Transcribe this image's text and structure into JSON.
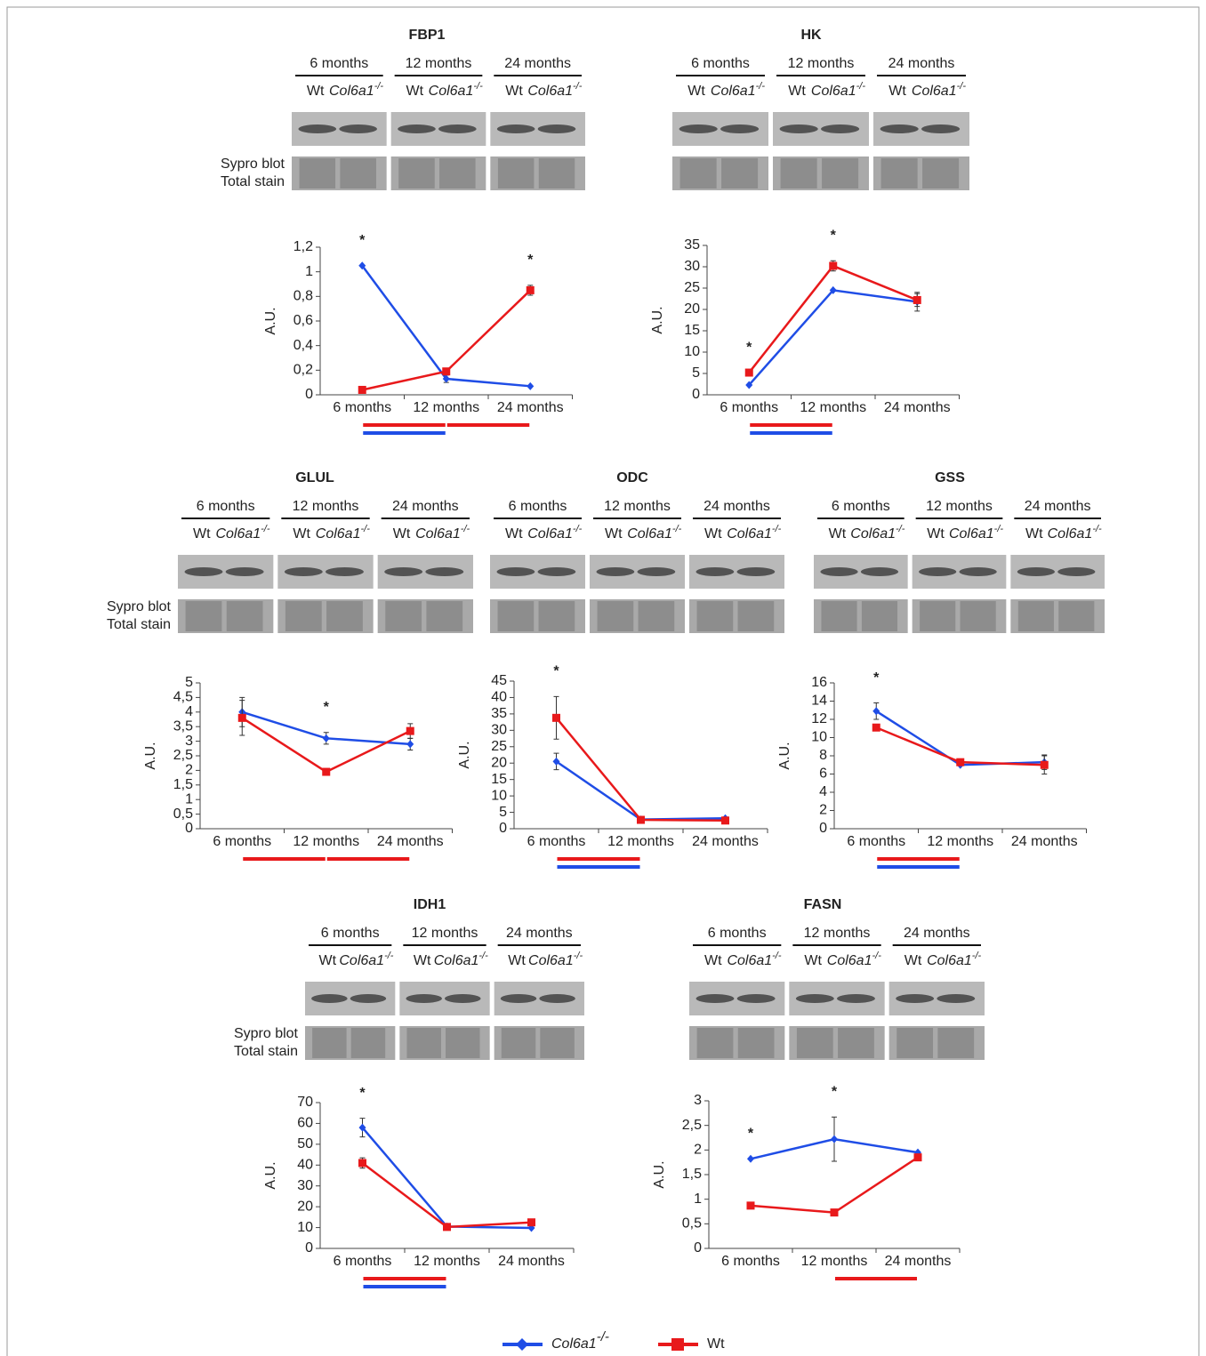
{
  "blot_labels": {
    "sypro": "Sypro blot",
    "total": "Total stain",
    "wt": "Wt",
    "ko": "Col6a1",
    "ko_sup": "-/-"
  },
  "chart_data": [
    {
      "type": "line",
      "title": "FBP1",
      "ylabel": "A.U.",
      "categories": [
        "6 months",
        "12 months",
        "24 months"
      ],
      "show_stain_label": true,
      "ylim": [
        0,
        1.2
      ],
      "yticks": [
        0,
        {
          "value": 0.2,
          "label": "0,2"
        },
        {
          "value": 0.4,
          "label": "0,4"
        },
        {
          "value": 0.6,
          "label": "0,6"
        },
        {
          "value": 0.8,
          "label": "0,8"
        },
        1,
        {
          "value": 1.2,
          "label": "1,2"
        }
      ],
      "series": [
        {
          "name": "Col6a1",
          "superscript": "-/-",
          "color": "#1f4de6",
          "values": [
            1.05,
            0.13,
            0.07
          ],
          "errors": [
            0,
            0.03,
            0
          ]
        },
        {
          "name": "Wt",
          "color": "#e8191b",
          "values": [
            0.04,
            0.19,
            0.85
          ],
          "errors": [
            0,
            0,
            0.04
          ]
        }
      ],
      "annotations": [
        {
          "text": "*",
          "category": 0
        },
        {
          "text": "*",
          "category": 2
        }
      ],
      "significance": [
        {
          "from": 0,
          "to": 1,
          "color": "#e8191b"
        },
        {
          "from": 0,
          "to": 1,
          "color": "#1f4de6"
        },
        {
          "from": 1,
          "to": 2,
          "color": "#e8191b"
        }
      ]
    },
    {
      "type": "line",
      "title": "HK",
      "ylabel": "A.U.",
      "categories": [
        "6 months",
        "12 months",
        "24 months"
      ],
      "show_stain_label": false,
      "ylim": [
        0,
        35
      ],
      "yticks": [
        0,
        5,
        10,
        15,
        20,
        25,
        30,
        35
      ],
      "series": [
        {
          "name": "Col6a1",
          "superscript": "-/-",
          "color": "#1f4de6",
          "values": [
            2.3,
            24.5,
            21.8
          ],
          "errors": [
            0,
            0,
            2.2
          ]
        },
        {
          "name": "Wt",
          "color": "#e8191b",
          "values": [
            5.2,
            30.2,
            22.2
          ],
          "errors": [
            0,
            1.2,
            1.5
          ]
        }
      ],
      "annotations": [
        {
          "text": "*",
          "category": 0
        },
        {
          "text": "*",
          "category": 1
        }
      ],
      "significance": [
        {
          "from": 0,
          "to": 1,
          "color": "#e8191b"
        },
        {
          "from": 0,
          "to": 1,
          "color": "#1f4de6"
        }
      ]
    },
    {
      "type": "line",
      "title": "GLUL",
      "ylabel": "A.U.",
      "categories": [
        "6 months",
        "12 months",
        "24 months"
      ],
      "show_stain_label": true,
      "ylim": [
        0,
        5
      ],
      "yticks": [
        0,
        {
          "value": 0.5,
          "label": "0,5"
        },
        1,
        {
          "value": 1.5,
          "label": "1,5"
        },
        2,
        {
          "value": 2.5,
          "label": "2,5"
        },
        3,
        {
          "value": 3.5,
          "label": "3,5"
        },
        4,
        {
          "value": 4.5,
          "label": "4,5"
        },
        5
      ],
      "series": [
        {
          "name": "Col6a1",
          "superscript": "-/-",
          "color": "#1f4de6",
          "values": [
            4.0,
            3.1,
            2.9
          ],
          "errors": [
            0.5,
            0.2,
            0.2
          ]
        },
        {
          "name": "Wt",
          "color": "#e8191b",
          "values": [
            3.8,
            1.95,
            3.35
          ],
          "errors": [
            0.6,
            0,
            0.25
          ]
        }
      ],
      "annotations": [
        {
          "text": "*",
          "category": 1
        }
      ],
      "significance": [
        {
          "from": 0,
          "to": 1,
          "color": "#e8191b"
        },
        {
          "from": 1,
          "to": 2,
          "color": "#e8191b"
        }
      ]
    },
    {
      "type": "line",
      "title": "ODC",
      "ylabel": "A.U.",
      "categories": [
        "6 months",
        "12 months",
        "24 months"
      ],
      "show_stain_label": false,
      "ylim": [
        0,
        45
      ],
      "yticks": [
        0,
        5,
        10,
        15,
        20,
        25,
        30,
        35,
        40,
        45
      ],
      "series": [
        {
          "name": "Col6a1",
          "superscript": "-/-",
          "color": "#1f4de6",
          "values": [
            20.5,
            2.8,
            3.2
          ],
          "errors": [
            2.5,
            0,
            0
          ]
        },
        {
          "name": "Wt",
          "color": "#e8191b",
          "values": [
            33.8,
            2.7,
            2.5
          ],
          "errors": [
            6.5,
            0,
            0
          ]
        }
      ],
      "annotations": [
        {
          "text": "*",
          "category": 0
        }
      ],
      "significance": [
        {
          "from": 0,
          "to": 1,
          "color": "#e8191b"
        },
        {
          "from": 0,
          "to": 1,
          "color": "#1f4de6"
        }
      ]
    },
    {
      "type": "line",
      "title": "GSS",
      "ylabel": "A.U.",
      "categories": [
        "6 months",
        "12 months",
        "24 months"
      ],
      "show_stain_label": false,
      "ylim": [
        0,
        16
      ],
      "yticks": [
        0,
        2,
        4,
        6,
        8,
        10,
        12,
        14,
        16
      ],
      "series": [
        {
          "name": "Col6a1",
          "superscript": "-/-",
          "color": "#1f4de6",
          "values": [
            12.9,
            7.0,
            7.3
          ],
          "errors": [
            0.9,
            0,
            0.8
          ]
        },
        {
          "name": "Wt",
          "color": "#e8191b",
          "values": [
            11.1,
            7.3,
            7.0
          ],
          "errors": [
            0,
            0,
            1.0
          ]
        }
      ],
      "annotations": [
        {
          "text": "*",
          "category": 0
        }
      ],
      "significance": [
        {
          "from": 0,
          "to": 1,
          "color": "#e8191b"
        },
        {
          "from": 0,
          "to": 1,
          "color": "#1f4de6"
        }
      ]
    },
    {
      "type": "line",
      "title": "IDH1",
      "ylabel": "A.U.",
      "categories": [
        "6 months",
        "12 months",
        "24 months"
      ],
      "show_stain_label": true,
      "ylim": [
        0,
        70
      ],
      "yticks": [
        0,
        10,
        20,
        30,
        40,
        50,
        60,
        70
      ],
      "series": [
        {
          "name": "Col6a1",
          "superscript": "-/-",
          "color": "#1f4de6",
          "values": [
            58,
            10.5,
            9.8
          ],
          "errors": [
            4.5,
            0,
            0
          ]
        },
        {
          "name": "Wt",
          "color": "#e8191b",
          "values": [
            41,
            10.3,
            12.5
          ],
          "errors": [
            2.5,
            0,
            0
          ]
        }
      ],
      "annotations": [
        {
          "text": "*",
          "category": 0
        }
      ],
      "significance": [
        {
          "from": 0,
          "to": 1,
          "color": "#e8191b"
        },
        {
          "from": 0,
          "to": 1,
          "color": "#1f4de6"
        }
      ]
    },
    {
      "type": "line",
      "title": "FASN",
      "ylabel": "A.U.",
      "categories": [
        "6 months",
        "12 months",
        "24 months"
      ],
      "show_stain_label": false,
      "ylim": [
        0,
        3
      ],
      "yticks": [
        0,
        {
          "value": 0.5,
          "label": "0,5"
        },
        1,
        {
          "value": 1.5,
          "label": "1,5"
        },
        2,
        {
          "value": 2.5,
          "label": "2,5"
        },
        3
      ],
      "series": [
        {
          "name": "Col6a1",
          "superscript": "-/-",
          "color": "#1f4de6",
          "values": [
            1.82,
            2.22,
            1.95
          ],
          "errors": [
            0,
            0.45,
            0
          ]
        },
        {
          "name": "Wt",
          "color": "#e8191b",
          "values": [
            0.87,
            0.73,
            1.85
          ],
          "errors": [
            0,
            0,
            0
          ]
        }
      ],
      "annotations": [
        {
          "text": "*",
          "category": 0
        },
        {
          "text": "*",
          "category": 1
        }
      ],
      "significance": [
        {
          "from": 1,
          "to": 2,
          "color": "#e8191b"
        }
      ]
    }
  ]
}
